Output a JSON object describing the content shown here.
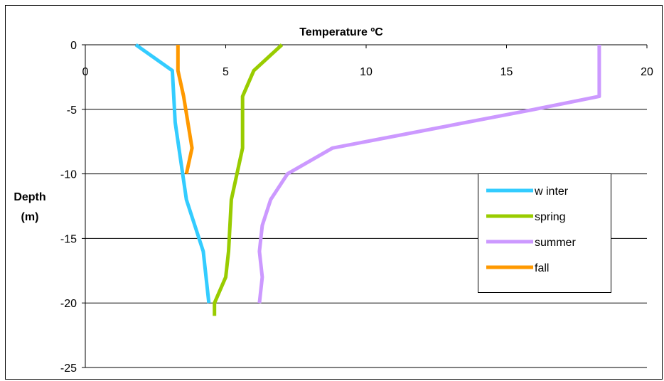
{
  "chart_data": {
    "type": "line",
    "title": "Temperature ºC",
    "xlabel": "",
    "ylabel": "Depth (m)",
    "ylabel_lines": [
      "Depth",
      "(m)"
    ],
    "xlim": [
      0,
      20
    ],
    "ylim": [
      -25,
      0
    ],
    "x_ticks": [
      0,
      5,
      10,
      15,
      20
    ],
    "y_ticks": [
      0,
      -5,
      -10,
      -15,
      -20,
      -25
    ],
    "x_tick_labels": [
      "0",
      "5",
      "10",
      "15",
      "20"
    ],
    "y_tick_labels": [
      "0",
      "-5",
      "-10",
      "-15",
      "-20",
      "-25"
    ],
    "grid": "horizontal",
    "legend_position": "right",
    "series": [
      {
        "name": "w inter",
        "color": "#33CCFF",
        "points": [
          {
            "x": 1.8,
            "y": 0
          },
          {
            "x": 3.1,
            "y": -2
          },
          {
            "x": 3.2,
            "y": -6
          },
          {
            "x": 3.6,
            "y": -12
          },
          {
            "x": 4.2,
            "y": -16
          },
          {
            "x": 4.4,
            "y": -20
          }
        ]
      },
      {
        "name": "spring",
        "color": "#99CC00",
        "points": [
          {
            "x": 7.0,
            "y": 0
          },
          {
            "x": 6.0,
            "y": -2
          },
          {
            "x": 5.6,
            "y": -4
          },
          {
            "x": 5.6,
            "y": -8
          },
          {
            "x": 5.4,
            "y": -10
          },
          {
            "x": 5.2,
            "y": -12
          },
          {
            "x": 5.1,
            "y": -16
          },
          {
            "x": 5.0,
            "y": -18
          },
          {
            "x": 4.6,
            "y": -20
          },
          {
            "x": 4.6,
            "y": -21
          }
        ]
      },
      {
        "name": "summer",
        "color": "#CC99FF",
        "points": [
          {
            "x": 18.3,
            "y": 0
          },
          {
            "x": 18.3,
            "y": -4
          },
          {
            "x": 16.0,
            "y": -5
          },
          {
            "x": 8.8,
            "y": -8
          },
          {
            "x": 7.2,
            "y": -10
          },
          {
            "x": 6.6,
            "y": -12
          },
          {
            "x": 6.3,
            "y": -14
          },
          {
            "x": 6.2,
            "y": -16
          },
          {
            "x": 6.3,
            "y": -18
          },
          {
            "x": 6.2,
            "y": -20
          }
        ]
      },
      {
        "name": "fall",
        "color": "#FF9900",
        "points": [
          {
            "x": 3.3,
            "y": 0
          },
          {
            "x": 3.3,
            "y": -2
          },
          {
            "x": 3.5,
            "y": -4
          },
          {
            "x": 3.8,
            "y": -8
          },
          {
            "x": 3.6,
            "y": -10
          }
        ]
      }
    ]
  }
}
